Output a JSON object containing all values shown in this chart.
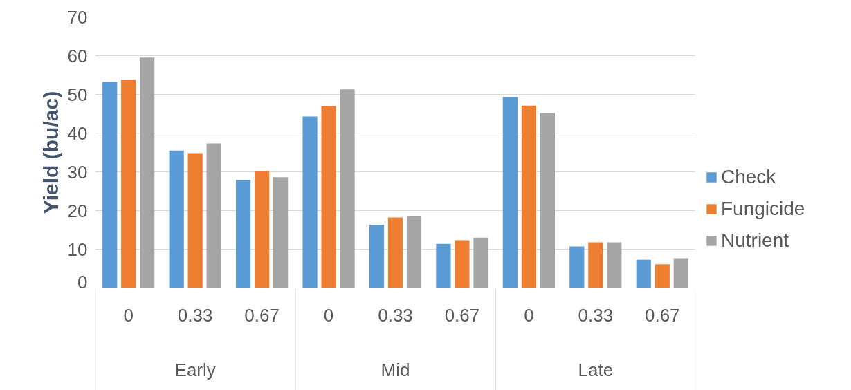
{
  "chart_data": {
    "type": "bar",
    "ylabel": "Yield (bu/ac)",
    "categories": [
      "0",
      "0.33",
      "0.67",
      "0",
      "0.33",
      "0.67",
      "0",
      "0.33",
      "0.67"
    ],
    "annotations": [
      "Early",
      "Mid",
      "Late"
    ],
    "series": [
      {
        "name": "Check",
        "color": "#5b9bd5",
        "values": [
          53.2,
          35.5,
          27.9,
          44.3,
          16.3,
          11.4,
          49.3,
          10.7,
          7.3
        ]
      },
      {
        "name": "Fungicide",
        "color": "#ed7d31",
        "values": [
          53.8,
          34.8,
          30.2,
          47.0,
          18.2,
          12.3,
          47.1,
          11.8,
          6.1
        ]
      },
      {
        "name": "Nutrient",
        "color": "#a5a5a5",
        "values": [
          59.5,
          37.3,
          28.6,
          51.3,
          18.6,
          13.0,
          45.2,
          11.8,
          7.7
        ]
      }
    ],
    "ylim": [
      0,
      70
    ],
    "yticks": [
      0,
      10,
      20,
      30,
      40,
      50,
      60,
      70
    ],
    "grid": "y",
    "legend": "right"
  }
}
